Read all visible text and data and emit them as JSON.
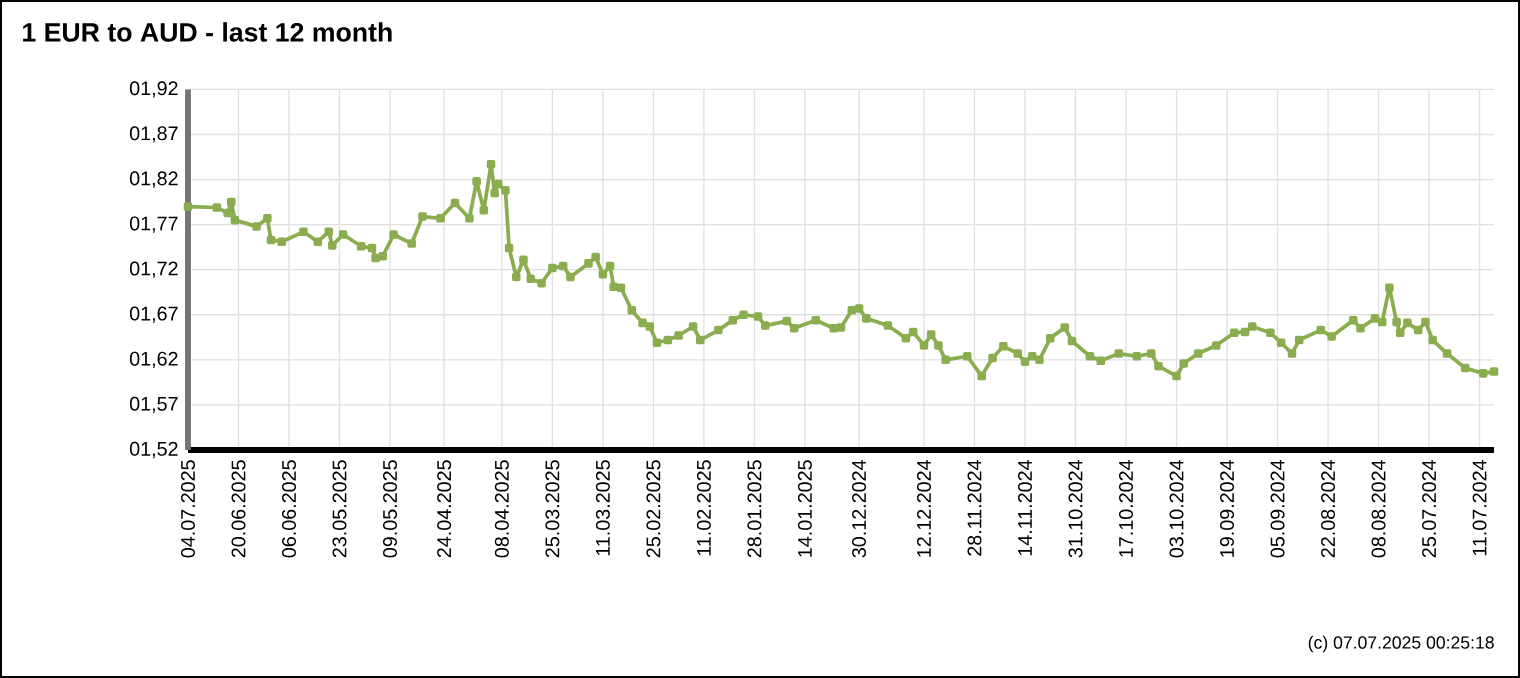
{
  "chart_data": {
    "type": "line",
    "title": "1 EUR to AUD - last 12 month",
    "annotations": [
      "(c) 07.07.2025 00:25:18"
    ],
    "x": [
      "2025-07-04",
      "2025-06-26",
      "2025-06-23",
      "2025-06-22",
      "2025-06-21",
      "2025-06-15",
      "2025-06-12",
      "2025-06-11",
      "2025-06-08",
      "2025-06-02",
      "2025-05-29",
      "2025-05-26",
      "2025-05-25",
      "2025-05-22",
      "2025-05-17",
      "2025-05-14",
      "2025-05-13",
      "2025-05-11",
      "2025-05-08",
      "2025-05-03",
      "2025-04-30",
      "2025-04-25",
      "2025-04-21",
      "2025-04-17",
      "2025-04-15",
      "2025-04-13",
      "2025-04-11",
      "2025-04-10",
      "2025-04-09",
      "2025-04-07",
      "2025-04-06",
      "2025-04-04",
      "2025-04-02",
      "2025-03-31",
      "2025-03-28",
      "2025-03-25",
      "2025-03-22",
      "2025-03-20",
      "2025-03-15",
      "2025-03-13",
      "2025-03-11",
      "2025-03-09",
      "2025-03-08",
      "2025-03-06",
      "2025-03-03",
      "2025-02-28",
      "2025-02-26",
      "2025-02-24",
      "2025-02-21",
      "2025-02-18",
      "2025-02-14",
      "2025-02-12",
      "2025-02-07",
      "2025-02-03",
      "2025-01-31",
      "2025-01-27",
      "2025-01-25",
      "2025-01-19",
      "2025-01-17",
      "2025-01-11",
      "2025-01-06",
      "2025-01-04",
      "2025-01-01",
      "2024-12-30",
      "2024-12-28",
      "2024-12-22",
      "2024-12-17",
      "2024-12-15",
      "2024-12-12",
      "2024-12-10",
      "2024-12-08",
      "2024-12-06",
      "2024-11-30",
      "2024-11-26",
      "2024-11-23",
      "2024-11-20",
      "2024-11-16",
      "2024-11-14",
      "2024-11-12",
      "2024-11-10",
      "2024-11-07",
      "2024-11-03",
      "2024-11-01",
      "2024-10-27",
      "2024-10-24",
      "2024-10-19",
      "2024-10-14",
      "2024-10-10",
      "2024-10-08",
      "2024-10-03",
      "2024-10-01",
      "2024-09-27",
      "2024-09-22",
      "2024-09-17",
      "2024-09-14",
      "2024-09-12",
      "2024-09-07",
      "2024-09-04",
      "2024-09-01",
      "2024-08-30",
      "2024-08-24",
      "2024-08-21",
      "2024-08-15",
      "2024-08-13",
      "2024-08-09",
      "2024-08-07",
      "2024-08-05",
      "2024-08-03",
      "2024-08-02",
      "2024-07-31",
      "2024-07-28",
      "2024-07-26",
      "2024-07-24",
      "2024-07-20",
      "2024-07-15",
      "2024-07-10",
      "2024-07-07"
    ],
    "series": [
      {
        "color": "#8aad4f",
        "values": [
          1.79,
          1.789,
          1.783,
          1.795,
          1.775,
          1.768,
          1.777,
          1.753,
          1.751,
          1.762,
          1.751,
          1.762,
          1.747,
          1.759,
          1.746,
          1.744,
          1.733,
          1.735,
          1.759,
          1.749,
          1.779,
          1.777,
          1.794,
          1.777,
          1.818,
          1.786,
          1.837,
          1.805,
          1.815,
          1.808,
          1.744,
          1.712,
          1.731,
          1.71,
          1.705,
          1.722,
          1.724,
          1.712,
          1.727,
          1.734,
          1.715,
          1.724,
          1.701,
          1.7,
          1.675,
          1.661,
          1.657,
          1.639,
          1.642,
          1.647,
          1.657,
          1.642,
          1.653,
          1.664,
          1.67,
          1.668,
          1.658,
          1.663,
          1.655,
          1.664,
          1.655,
          1.656,
          1.675,
          1.677,
          1.666,
          1.658,
          1.644,
          1.651,
          1.636,
          1.648,
          1.636,
          1.62,
          1.624,
          1.602,
          1.622,
          1.635,
          1.627,
          1.618,
          1.624,
          1.62,
          1.644,
          1.656,
          1.641,
          1.624,
          1.619,
          1.627,
          1.624,
          1.627,
          1.613,
          1.602,
          1.616,
          1.627,
          1.636,
          1.65,
          1.651,
          1.657,
          1.65,
          1.639,
          1.627,
          1.642,
          1.653,
          1.646,
          1.664,
          1.655,
          1.666,
          1.662,
          1.7,
          1.662,
          1.65,
          1.661,
          1.653,
          1.662,
          1.642,
          1.627,
          1.611,
          1.605,
          1.607
        ]
      }
    ],
    "xlim": [
      "2025-07-04",
      "2024-07-07"
    ],
    "xticks": [
      {
        "value": "2025-07-04",
        "label": "04.07.2025"
      },
      {
        "value": "2025-06-20",
        "label": "20.06.2025"
      },
      {
        "value": "2025-06-06",
        "label": "06.06.2025"
      },
      {
        "value": "2025-05-23",
        "label": "23.05.2025"
      },
      {
        "value": "2025-05-09",
        "label": "09.05.2025"
      },
      {
        "value": "2025-04-24",
        "label": "24.04.2025"
      },
      {
        "value": "2025-04-08",
        "label": "08.04.2025"
      },
      {
        "value": "2025-03-25",
        "label": "25.03.2025"
      },
      {
        "value": "2025-03-11",
        "label": "11.03.2025"
      },
      {
        "value": "2025-02-25",
        "label": "25.02.2025"
      },
      {
        "value": "2025-02-11",
        "label": "11.02.2025"
      },
      {
        "value": "2025-01-28",
        "label": "28.01.2025"
      },
      {
        "value": "2025-01-14",
        "label": "14.01.2025"
      },
      {
        "value": "2024-12-30",
        "label": "30.12.2024"
      },
      {
        "value": "2024-12-12",
        "label": "12.12.2024"
      },
      {
        "value": "2024-11-28",
        "label": "28.11.2024"
      },
      {
        "value": "2024-11-14",
        "label": "14.11.2024"
      },
      {
        "value": "2024-10-31",
        "label": "31.10.2024"
      },
      {
        "value": "2024-10-17",
        "label": "17.10.2024"
      },
      {
        "value": "2024-10-03",
        "label": "03.10.2024"
      },
      {
        "value": "2024-09-19",
        "label": "19.09.2024"
      },
      {
        "value": "2024-09-05",
        "label": "05.09.2024"
      },
      {
        "value": "2024-08-22",
        "label": "22.08.2024"
      },
      {
        "value": "2024-08-08",
        "label": "08.08.2024"
      },
      {
        "value": "2024-07-25",
        "label": "25.07.2024"
      },
      {
        "value": "2024-07-11",
        "label": "11.07.2024"
      }
    ],
    "ylim": [
      1.52,
      1.92
    ],
    "yticks": [
      {
        "value": 1.52,
        "label": "01,52"
      },
      {
        "value": 1.57,
        "label": "01,57"
      },
      {
        "value": 1.62,
        "label": "01,62"
      },
      {
        "value": 1.67,
        "label": "01,67"
      },
      {
        "value": 1.72,
        "label": "01,72"
      },
      {
        "value": 1.77,
        "label": "01,77"
      },
      {
        "value": 1.82,
        "label": "01,82"
      },
      {
        "value": 1.87,
        "label": "01,87"
      },
      {
        "value": 1.92,
        "label": "01,92"
      }
    ],
    "grid": true,
    "marker": "square",
    "line_style": "solid"
  }
}
